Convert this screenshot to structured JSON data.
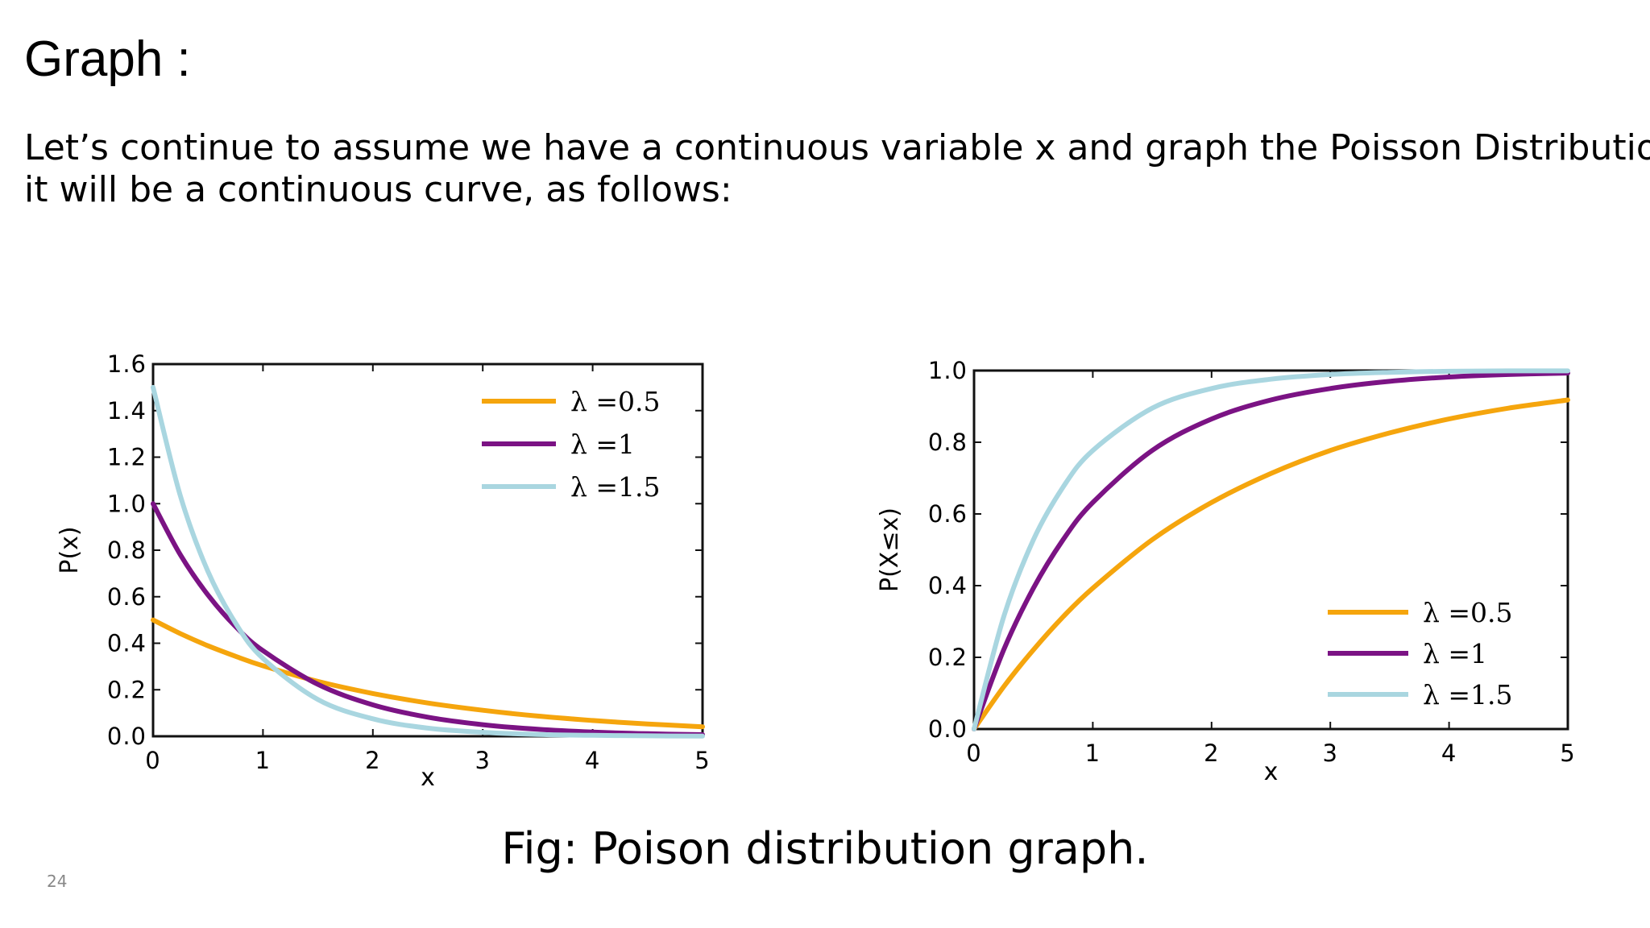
{
  "slide": {
    "title": "Graph :",
    "body_line1": "Let’s continue to assume we have a continuous variable x and graph the Poisson  Distribution,",
    "body_line2": "it will be a continuous curve, as follows:",
    "caption": "Fig: Poison distribution graph.",
    "page_number": "24"
  },
  "chart_data": [
    {
      "type": "line",
      "title": "",
      "xlabel": "x",
      "ylabel": "P(x)",
      "xlim": [
        0,
        5
      ],
      "ylim": [
        0,
        1.6
      ],
      "xticks": [
        "0",
        "1",
        "2",
        "3",
        "4",
        "5"
      ],
      "yticks": [
        "0.0",
        "0.2",
        "0.4",
        "0.6",
        "0.8",
        "1.0",
        "1.2",
        "1.4",
        "1.6"
      ],
      "grid": false,
      "legend": "top-right",
      "x": [
        0,
        0.25,
        0.5,
        0.75,
        1,
        1.5,
        2,
        2.5,
        3,
        3.5,
        4,
        4.5,
        5
      ],
      "series": [
        {
          "name": "λ =0.5",
          "color": "#f5a50d",
          "values": [
            0.5,
            0.441,
            0.389,
            0.344,
            0.303,
            0.236,
            0.184,
            0.143,
            0.112,
            0.087,
            0.068,
            0.053,
            0.041
          ]
        },
        {
          "name": "λ =1",
          "color": "#7b1384",
          "values": [
            1.0,
            0.779,
            0.607,
            0.472,
            0.368,
            0.223,
            0.135,
            0.082,
            0.05,
            0.03,
            0.018,
            0.011,
            0.007
          ]
        },
        {
          "name": "λ =1.5",
          "color": "#a9d6e0",
          "values": [
            1.5,
            1.031,
            0.708,
            0.487,
            0.335,
            0.158,
            0.075,
            0.035,
            0.017,
            0.008,
            0.004,
            0.002,
            0.001
          ]
        }
      ]
    },
    {
      "type": "line",
      "title": "",
      "xlabel": "x",
      "ylabel": "P(X≤x)",
      "xlim": [
        0,
        5
      ],
      "ylim": [
        0,
        1.0
      ],
      "xticks": [
        "0",
        "1",
        "2",
        "3",
        "4",
        "5"
      ],
      "yticks": [
        "0.0",
        "0.2",
        "0.4",
        "0.6",
        "0.8",
        "1.0"
      ],
      "grid": false,
      "legend": "bottom-right",
      "x": [
        0,
        0.25,
        0.5,
        0.75,
        1,
        1.5,
        2,
        2.5,
        3,
        3.5,
        4,
        4.5,
        5
      ],
      "series": [
        {
          "name": "λ =0.5",
          "color": "#f5a50d",
          "values": [
            0,
            0.118,
            0.221,
            0.313,
            0.393,
            0.528,
            0.632,
            0.713,
            0.777,
            0.826,
            0.865,
            0.895,
            0.918
          ]
        },
        {
          "name": "λ =1",
          "color": "#7b1384",
          "values": [
            0,
            0.221,
            0.393,
            0.528,
            0.632,
            0.777,
            0.865,
            0.918,
            0.95,
            0.97,
            0.982,
            0.989,
            0.993
          ]
        },
        {
          "name": "λ =1.5",
          "color": "#a9d6e0",
          "values": [
            0,
            0.313,
            0.528,
            0.675,
            0.777,
            0.895,
            0.95,
            0.976,
            0.989,
            0.995,
            0.998,
            0.999,
            0.999
          ]
        }
      ]
    }
  ]
}
